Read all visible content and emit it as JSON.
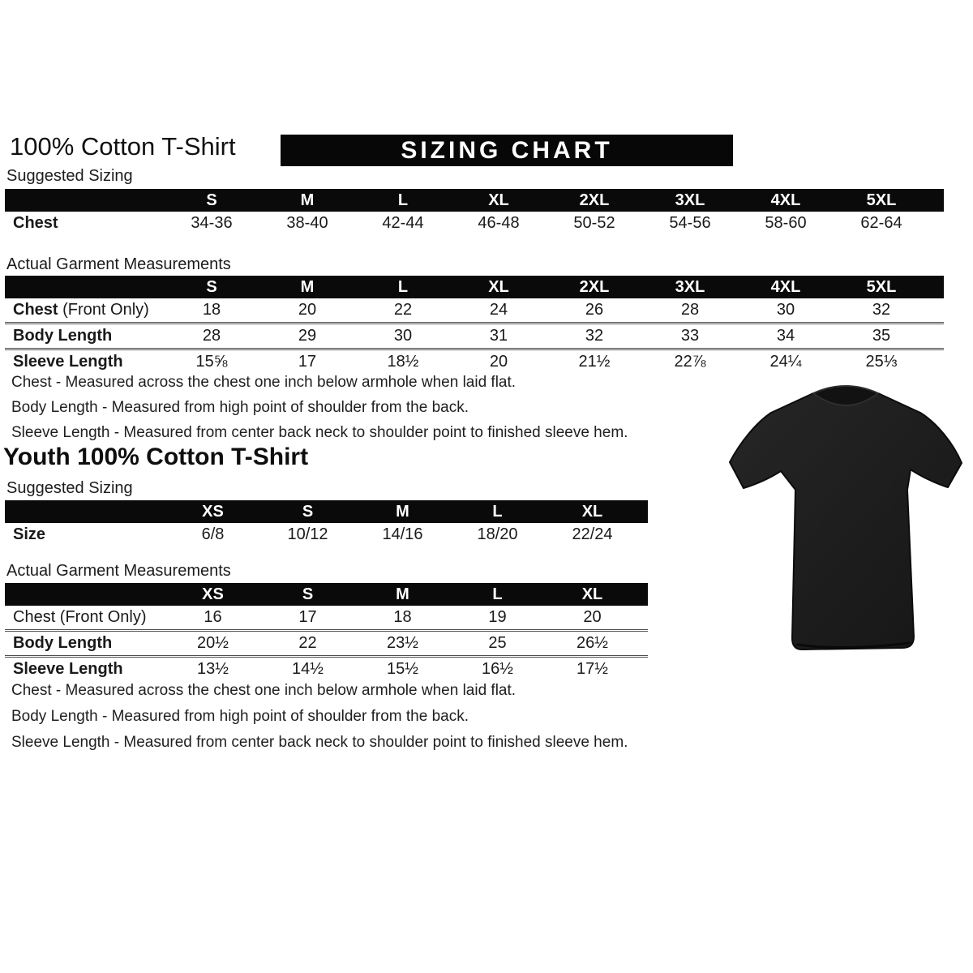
{
  "page": {
    "background_color": "#ffffff",
    "text_color": "#1a1a1a",
    "bar_color": "#0a0a0a",
    "bar_text_color": "#ffffff",
    "tshirt_color": "#1f1f1f"
  },
  "adult": {
    "title": "100% Cotton T-Shirt",
    "banner": "SIZING CHART",
    "suggested": {
      "label": "Suggested Sizing",
      "columns": [
        "S",
        "M",
        "L",
        "XL",
        "2XL",
        "3XL",
        "4XL",
        "5XL"
      ],
      "rows": [
        {
          "label_bold": "Chest",
          "values": [
            "34-36",
            "38-40",
            "42-44",
            "46-48",
            "50-52",
            "54-56",
            "58-60",
            "62-64"
          ]
        }
      ]
    },
    "actual": {
      "label": "Actual Garment Measurements",
      "columns": [
        "S",
        "M",
        "L",
        "XL",
        "2XL",
        "3XL",
        "4XL",
        "5XL"
      ],
      "rows": [
        {
          "label_bold": "Chest",
          "label_plain": " (Front Only)",
          "values": [
            "18",
            "20",
            "22",
            "24",
            "26",
            "28",
            "30",
            "32"
          ]
        },
        {
          "label_bold": "Body Length",
          "values": [
            "28",
            "29",
            "30",
            "31",
            "32",
            "33",
            "34",
            "35"
          ]
        },
        {
          "label_bold": "Sleeve Length",
          "values": [
            "15⅝",
            "17",
            "18½",
            "20",
            "21½",
            "22⅞",
            "24¼",
            "25⅓"
          ]
        }
      ]
    },
    "notes": [
      "Chest - Measured across the chest one inch below armhole when laid flat.",
      "Body Length - Measured from high point of shoulder from the back.",
      "Sleeve Length - Measured from center back neck to shoulder point to finished sleeve hem."
    ]
  },
  "youth": {
    "title": "Youth 100% Cotton T-Shirt",
    "suggested": {
      "label": "Suggested Sizing",
      "columns": [
        "XS",
        "S",
        "M",
        "L",
        "XL"
      ],
      "rows": [
        {
          "label_bold": "Size",
          "values": [
            "6/8",
            "10/12",
            "14/16",
            "18/20",
            "22/24"
          ]
        }
      ]
    },
    "actual": {
      "label": "Actual Garment Measurements",
      "columns": [
        "XS",
        "S",
        "M",
        "L",
        "XL"
      ],
      "rows": [
        {
          "label_plain": "Chest (Front Only)",
          "values": [
            "16",
            "17",
            "18",
            "19",
            "20"
          ]
        },
        {
          "label_bold": "Body Length",
          "values": [
            "20½",
            "22",
            "23½",
            "25",
            "26½"
          ]
        },
        {
          "label_bold": "Sleeve Length",
          "values": [
            "13½",
            "14½",
            "15½",
            "16½",
            "17½"
          ]
        }
      ]
    },
    "notes": [
      "Chest - Measured across the chest one inch below armhole when laid flat.",
      "Body Length - Measured from high point of shoulder from the back.",
      "Sleeve Length - Measured from center back neck to shoulder point to finished sleeve hem."
    ]
  },
  "tshirt_image": {
    "name": "black cotton t-shirt product photo"
  }
}
